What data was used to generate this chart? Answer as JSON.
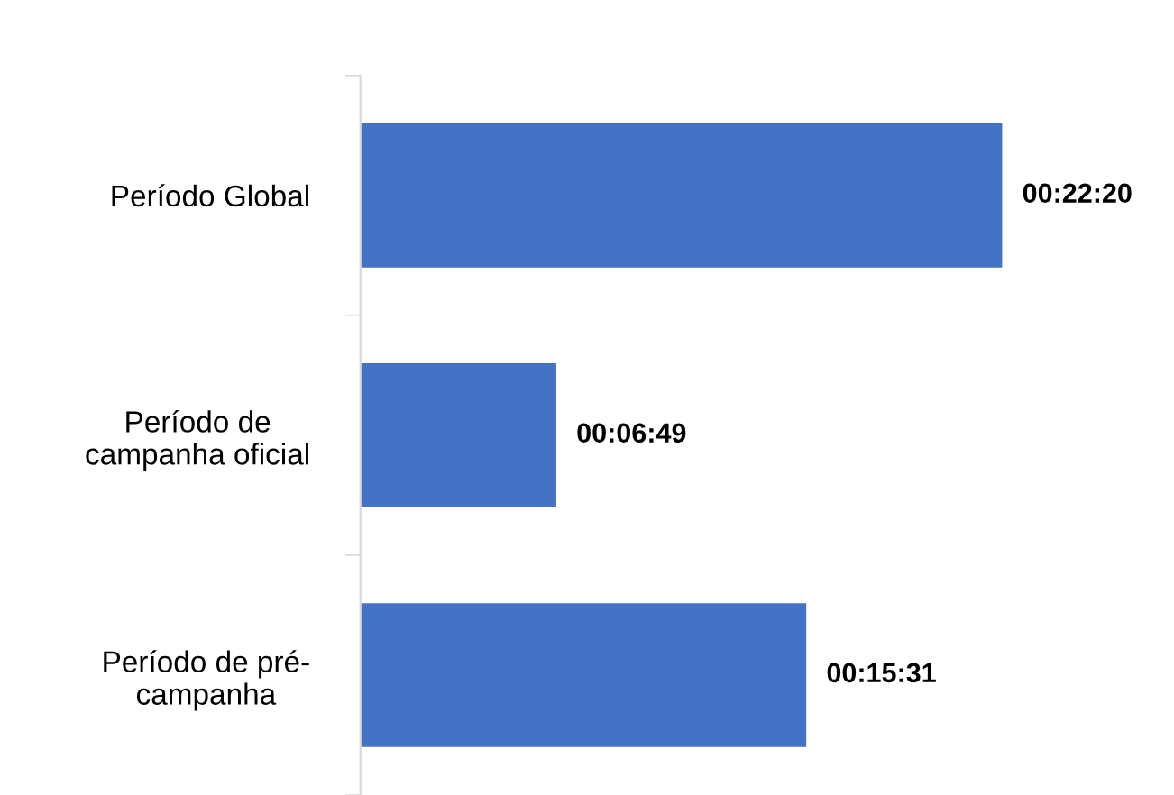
{
  "chart_data": {
    "type": "bar",
    "orientation": "horizontal",
    "categories": [
      "Período Global",
      "Período de\ncampanha oficial",
      "Período de pré-\ncampanha"
    ],
    "values": [
      1340,
      409,
      931
    ],
    "color": "#4472c4",
    "value_labels": [
      "00:22:20",
      "00:06:49",
      "00:15:31"
    ],
    "grid": false,
    "legend": false
  }
}
